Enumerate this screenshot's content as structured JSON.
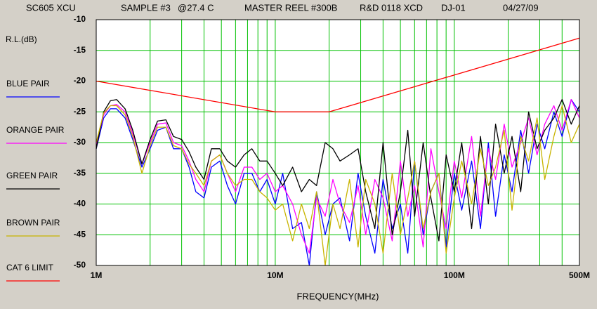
{
  "chart_data": {
    "type": "line",
    "title_parts": [
      "SC605 XCU",
      "SAMPLE #3",
      "@27.4 C",
      "MASTER REEL #300B",
      "R&D 0118 XCD",
      "DJ-01",
      "04/27/09"
    ],
    "y_label": "R.L.(dB)",
    "x_label": "FREQUENCY(MHz)",
    "x_scale": "log",
    "grid": true,
    "grid_color": "#00c000",
    "xlim": [
      1,
      500
    ],
    "ylim": [
      -50,
      -10
    ],
    "xticks": [
      {
        "value": 1,
        "label": "1M"
      },
      {
        "value": 10,
        "label": "10M"
      },
      {
        "value": 100,
        "label": "100M"
      },
      {
        "value": 500,
        "label": "500M"
      }
    ],
    "xgrid_minor": [
      2,
      3,
      4,
      5,
      6,
      7,
      8,
      9,
      20,
      30,
      40,
      50,
      60,
      70,
      80,
      90,
      200,
      300,
      400
    ],
    "yticks": [
      -10,
      -15,
      -20,
      -25,
      -30,
      -35,
      -40,
      -45,
      -50
    ],
    "x": [
      1,
      1.1,
      1.2,
      1.3,
      1.45,
      1.6,
      1.8,
      2,
      2.2,
      2.45,
      2.7,
      3,
      3.3,
      3.6,
      4,
      4.4,
      4.9,
      5.4,
      6,
      6.7,
      7.4,
      8.2,
      9,
      10,
      11,
      12.5,
      14,
      15.5,
      17,
      19,
      21,
      23,
      26,
      29,
      32,
      36,
      40,
      45,
      50,
      55,
      60,
      67,
      74,
      82,
      90,
      100,
      110,
      125,
      140,
      155,
      170,
      190,
      210,
      235,
      260,
      290,
      320,
      360,
      400,
      450,
      500
    ],
    "series": [
      {
        "name": "BLUE PAIR",
        "color": "#0000ff",
        "values": [
          -31,
          -26,
          -24.5,
          -24.5,
          -26,
          -29.5,
          -34,
          -31,
          -28,
          -27.5,
          -31,
          -31,
          -34,
          -38,
          -39,
          -34,
          -33,
          -37,
          -40,
          -35,
          -35,
          -38,
          -36,
          -40,
          -35,
          -44,
          -43,
          -50,
          -38,
          -45,
          -40,
          -39,
          -46,
          -35,
          -42,
          -48,
          -36,
          -44,
          -40,
          -48,
          -33,
          -45,
          -38,
          -35,
          -47,
          -35,
          -41,
          -33,
          -44,
          -30,
          -42,
          -32,
          -38,
          -28,
          -35,
          -27,
          -31,
          -25,
          -29,
          -23,
          -25
        ]
      },
      {
        "name": "ORANGE PAIR",
        "color": "#ff00ff",
        "values": [
          -30.5,
          -25.5,
          -24,
          -23.8,
          -25,
          -28.5,
          -33.5,
          -30,
          -27,
          -26.8,
          -30,
          -30.5,
          -33,
          -36,
          -38,
          -33,
          -32,
          -35,
          -38,
          -34,
          -34,
          -36,
          -35,
          -38,
          -37,
          -40,
          -45,
          -48,
          -39,
          -42,
          -36,
          -40,
          -43,
          -37,
          -45,
          -36,
          -39,
          -46,
          -33,
          -42,
          -37,
          -47,
          -31,
          -38,
          -44,
          -33,
          -39,
          -29,
          -42,
          -31,
          -36,
          -27,
          -34,
          -30,
          -26,
          -32,
          -27,
          -24,
          -28,
          -23,
          -26
        ]
      },
      {
        "name": "GREEN PAIR",
        "color": "#000000",
        "values": [
          -31,
          -25,
          -23.2,
          -23,
          -24.5,
          -28,
          -33.5,
          -29.5,
          -26.5,
          -26.3,
          -29,
          -29.5,
          -31.5,
          -34,
          -36,
          -31,
          -31,
          -33,
          -34,
          -32,
          -31,
          -33,
          -33,
          -35,
          -37,
          -34,
          -38,
          -36,
          -37,
          -30,
          -31,
          -33,
          -32,
          -31,
          -38,
          -44,
          -30,
          -45,
          -38,
          -28,
          -42,
          -30,
          -39,
          -46,
          -32,
          -38,
          -30,
          -44,
          -29,
          -40,
          -27,
          -35,
          -29,
          -38,
          -25,
          -31,
          -28,
          -26,
          -23,
          -27,
          -24
        ]
      },
      {
        "name": "BROWN PAIR",
        "color": "#c8b400",
        "values": [
          -30,
          -25.2,
          -24,
          -24,
          -25.5,
          -29,
          -35,
          -30.5,
          -27.5,
          -27.5,
          -30.5,
          -31,
          -33.5,
          -35,
          -37,
          -33,
          -32,
          -35,
          -37,
          -36,
          -36,
          -38,
          -39,
          -41,
          -40,
          -46,
          -40,
          -44,
          -38,
          -50,
          -40,
          -44,
          -36,
          -47,
          -36,
          -40,
          -48,
          -35,
          -45,
          -39,
          -33,
          -44,
          -38,
          -35,
          -48,
          -39,
          -33,
          -40,
          -31,
          -37,
          -34,
          -28,
          -41,
          -29,
          -33,
          -26,
          -36,
          -29,
          -24,
          -30,
          -27
        ]
      },
      {
        "name": "CAT 6 LIMIT",
        "color": "#ff0000",
        "x": [
          1,
          10,
          20,
          500
        ],
        "values": [
          -20,
          -25,
          -25,
          -13
        ]
      }
    ]
  }
}
